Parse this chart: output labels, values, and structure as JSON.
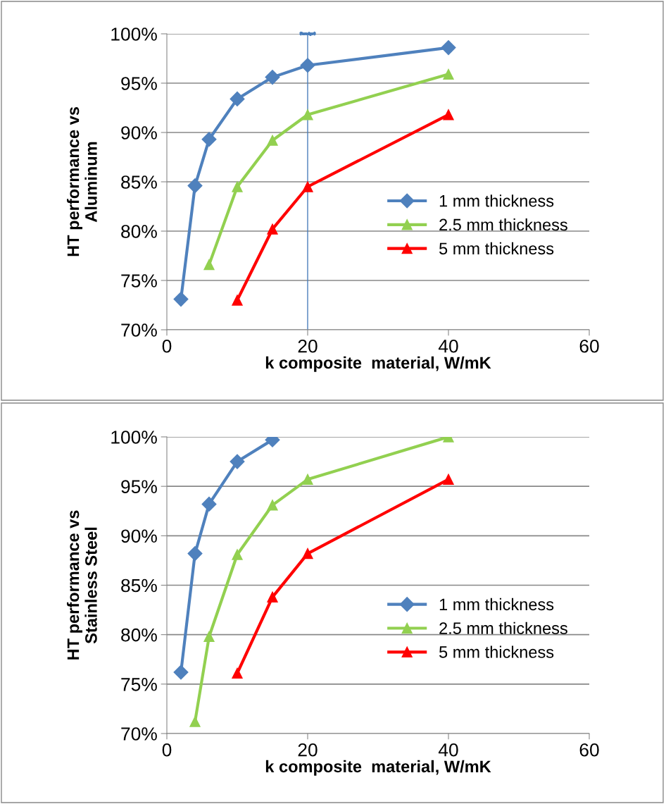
{
  "chart_data": [
    {
      "type": "line",
      "xlabel": "k composite  material, W/mK",
      "ylabel": "HT performance vs\nAluminum",
      "xlim": [
        0,
        60
      ],
      "xticks": [
        0,
        20,
        40,
        60
      ],
      "ylim": [
        70,
        100
      ],
      "yticks": [
        {
          "value": 70,
          "label": "70%"
        },
        {
          "value": 75,
          "label": "75%"
        },
        {
          "value": 80,
          "label": "80%"
        },
        {
          "value": 85,
          "label": "85%"
        },
        {
          "value": 90,
          "label": "90%"
        },
        {
          "value": 95,
          "label": "95%"
        },
        {
          "value": 100,
          "label": "100%"
        }
      ],
      "grid": "y",
      "legend": "right",
      "ref_lines": [
        {
          "axis": "x",
          "value": 20,
          "color": "#4a7ebb"
        }
      ],
      "series": [
        {
          "name": "1 mm thickness",
          "color": "#4f81bd",
          "marker": "diamond",
          "x": [
            2,
            4,
            6,
            10,
            15,
            20,
            40
          ],
          "values": [
            73.1,
            84.6,
            89.3,
            93.4,
            95.6,
            96.8,
            98.6
          ]
        },
        {
          "name": "2.5 mm thickness",
          "color": "#92d050",
          "marker": "triangle",
          "x": [
            6,
            10,
            15,
            20,
            40
          ],
          "values": [
            76.6,
            84.5,
            89.2,
            91.8,
            95.9
          ]
        },
        {
          "name": "5 mm thickness",
          "color": "#ff0000",
          "marker": "triangle",
          "x": [
            10,
            15,
            20,
            40
          ],
          "values": [
            73.0,
            80.2,
            84.5,
            91.8
          ]
        }
      ]
    },
    {
      "type": "line",
      "xlabel": "k composite  material, W/mK",
      "ylabel": "HT performance vs\nStainless Steel",
      "xlim": [
        0,
        60
      ],
      "xticks": [
        0,
        20,
        40,
        60
      ],
      "ylim": [
        70,
        100
      ],
      "yticks": [
        {
          "value": 70,
          "label": "70%"
        },
        {
          "value": 75,
          "label": "75%"
        },
        {
          "value": 80,
          "label": "80%"
        },
        {
          "value": 85,
          "label": "85%"
        },
        {
          "value": 90,
          "label": "90%"
        },
        {
          "value": 95,
          "label": "95%"
        },
        {
          "value": 100,
          "label": "100%"
        }
      ],
      "grid": "y",
      "legend": "right",
      "series": [
        {
          "name": "1 mm thickness",
          "color": "#4f81bd",
          "marker": "diamond",
          "x": [
            2,
            4,
            6,
            10,
            15
          ],
          "values": [
            76.2,
            88.2,
            93.2,
            97.5,
            99.7
          ]
        },
        {
          "name": "2.5 mm thickness",
          "color": "#92d050",
          "marker": "triangle",
          "x": [
            4,
            6,
            10,
            15,
            20,
            40
          ],
          "values": [
            71.2,
            79.8,
            88.1,
            93.1,
            95.7,
            100.0
          ]
        },
        {
          "name": "5 mm thickness",
          "color": "#ff0000",
          "marker": "triangle",
          "x": [
            10,
            15,
            20,
            40
          ],
          "values": [
            76.1,
            83.8,
            88.2,
            95.7
          ]
        }
      ]
    }
  ]
}
